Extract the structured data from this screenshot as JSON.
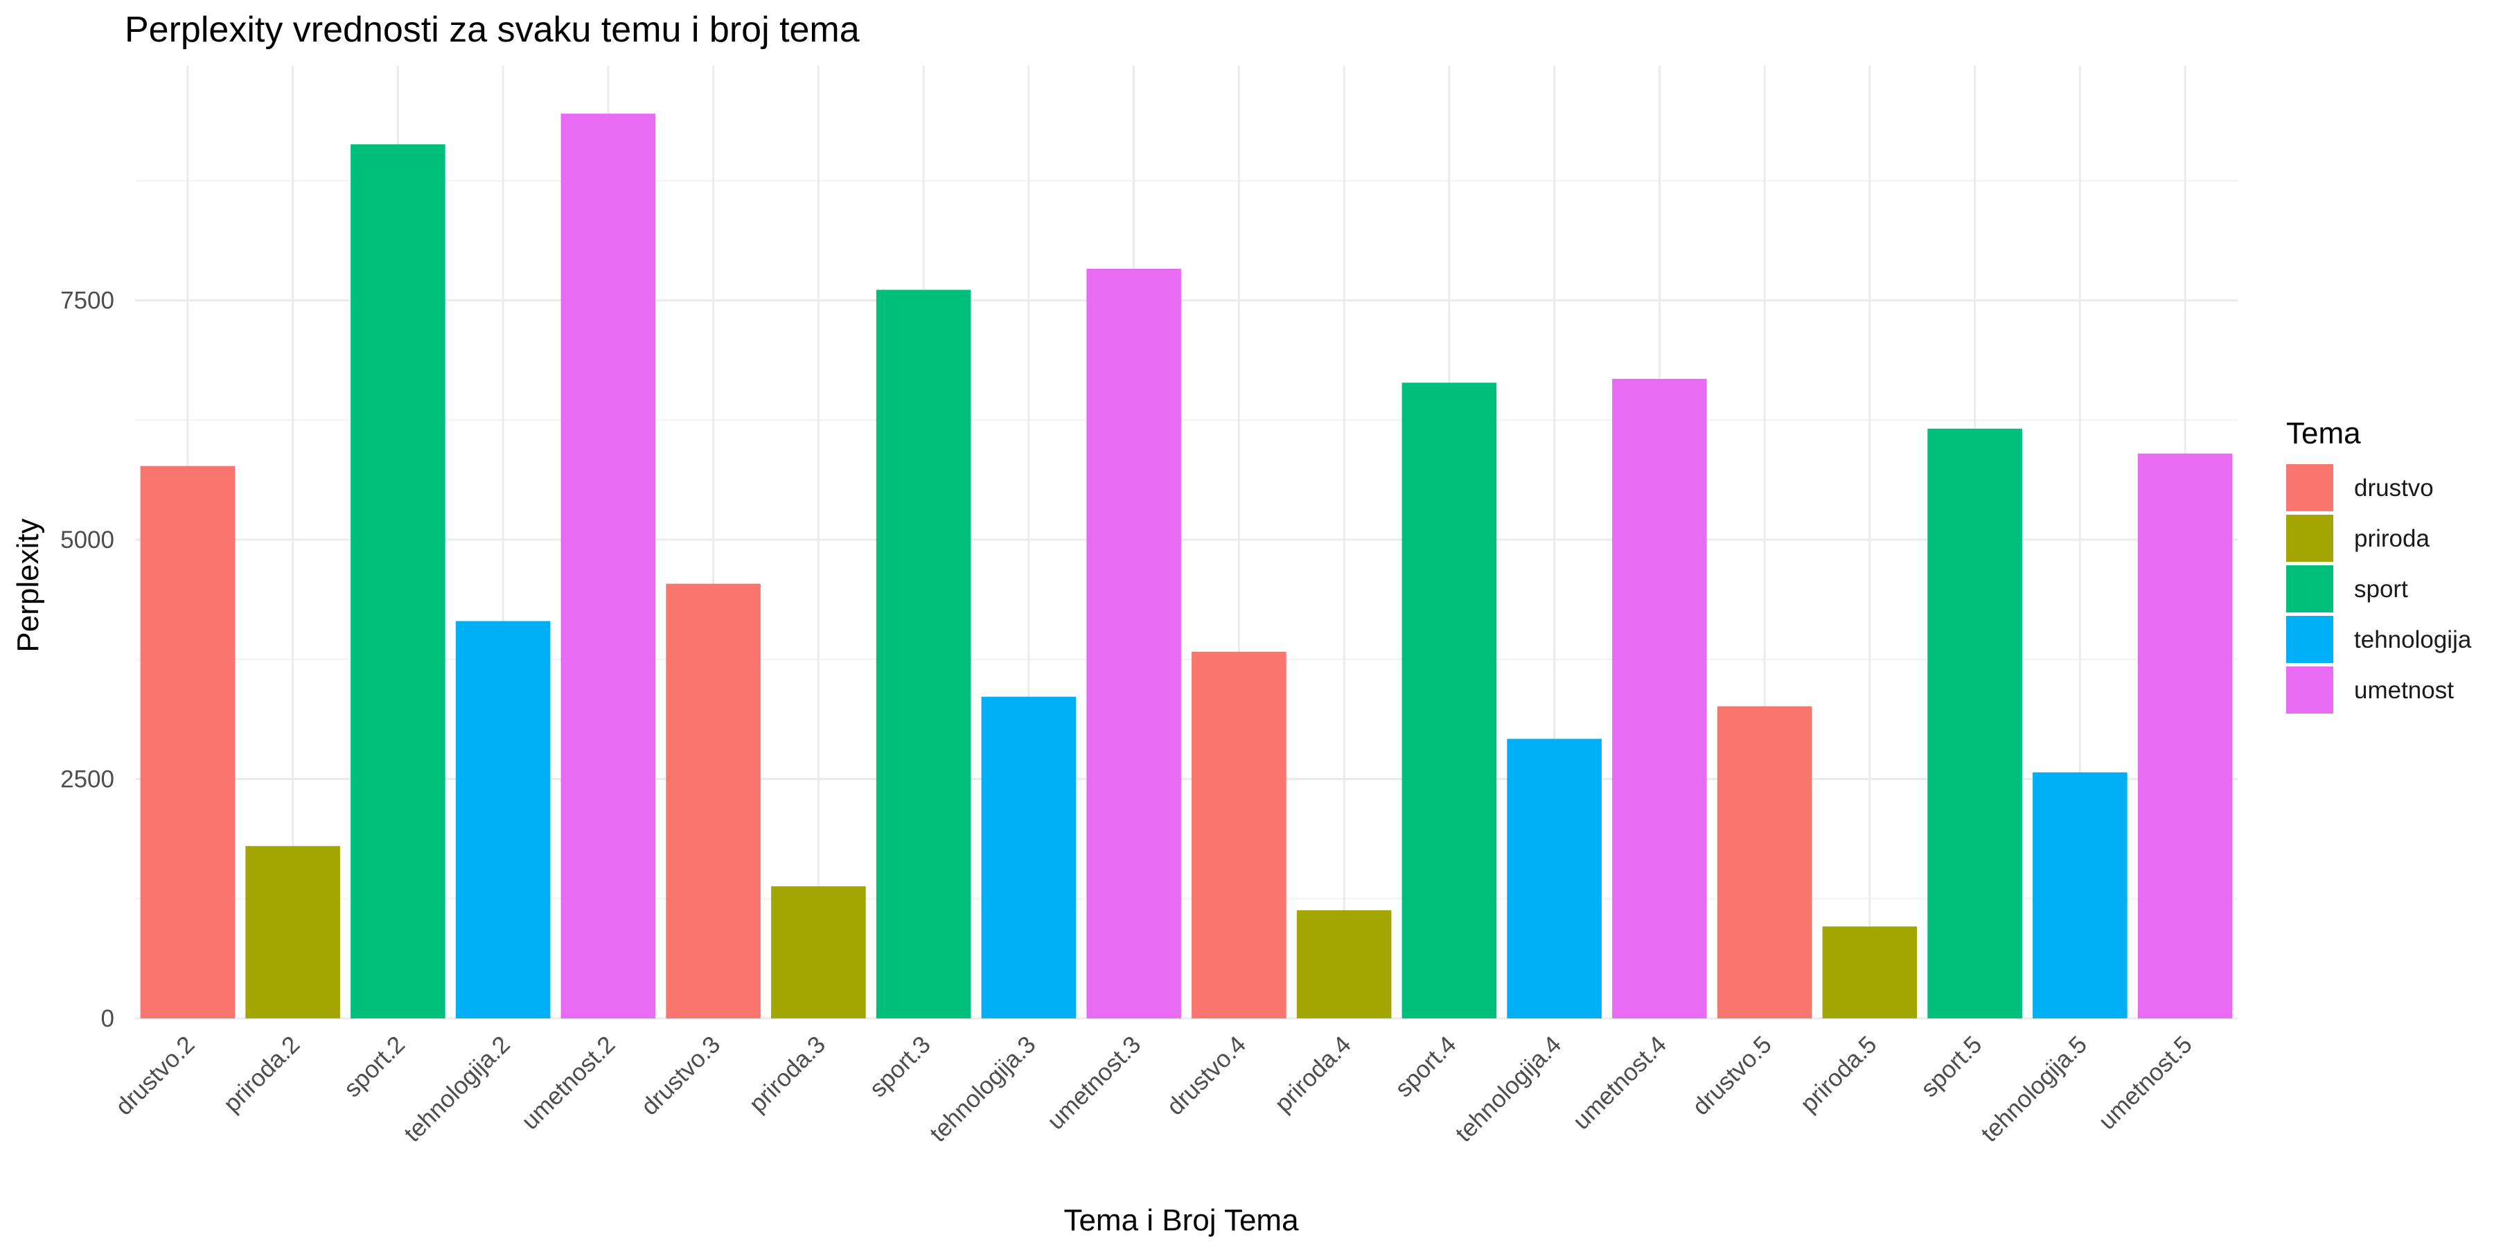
{
  "chart_data": {
    "type": "bar",
    "title": "Perplexity vrednosti za svaku temu i broj tema",
    "xlabel": "Tema i Broj Tema",
    "ylabel": "Perplexity",
    "ylim": [
      0,
      9950
    ],
    "yticks": [
      0,
      2500,
      5000,
      7500
    ],
    "grid": true,
    "legend": {
      "title": "Tema",
      "placement": "right",
      "entries": [
        {
          "label": "drustvo",
          "color": "#F8766D"
        },
        {
          "label": "priroda",
          "color": "#A3A500"
        },
        {
          "label": "sport",
          "color": "#00BF7D"
        },
        {
          "label": "tehnologija",
          "color": "#00B0F6"
        },
        {
          "label": "umetnost",
          "color": "#E76BF3"
        }
      ]
    },
    "categories": [
      "drustvo.2",
      "priroda.2",
      "sport.2",
      "tehnologija.2",
      "umetnost.2",
      "drustvo.3",
      "priroda.3",
      "sport.3",
      "tehnologija.3",
      "umetnost.3",
      "drustvo.4",
      "priroda.4",
      "sport.4",
      "tehnologija.4",
      "umetnost.4",
      "drustvo.5",
      "priroda.5",
      "sport.5",
      "tehnologija.5",
      "umetnost.5"
    ],
    "groups": [
      "drustvo",
      "priroda",
      "sport",
      "tehnologija",
      "umetnost",
      "drustvo",
      "priroda",
      "sport",
      "tehnologija",
      "umetnost",
      "drustvo",
      "priroda",
      "sport",
      "tehnologija",
      "umetnost",
      "drustvo",
      "priroda",
      "sport",
      "tehnologija",
      "umetnost"
    ],
    "values": [
      5770,
      1800,
      9130,
      4150,
      9450,
      4540,
      1380,
      7610,
      3360,
      7830,
      3830,
      1130,
      6640,
      2920,
      6680,
      3260,
      960,
      6160,
      2570,
      5900
    ]
  }
}
